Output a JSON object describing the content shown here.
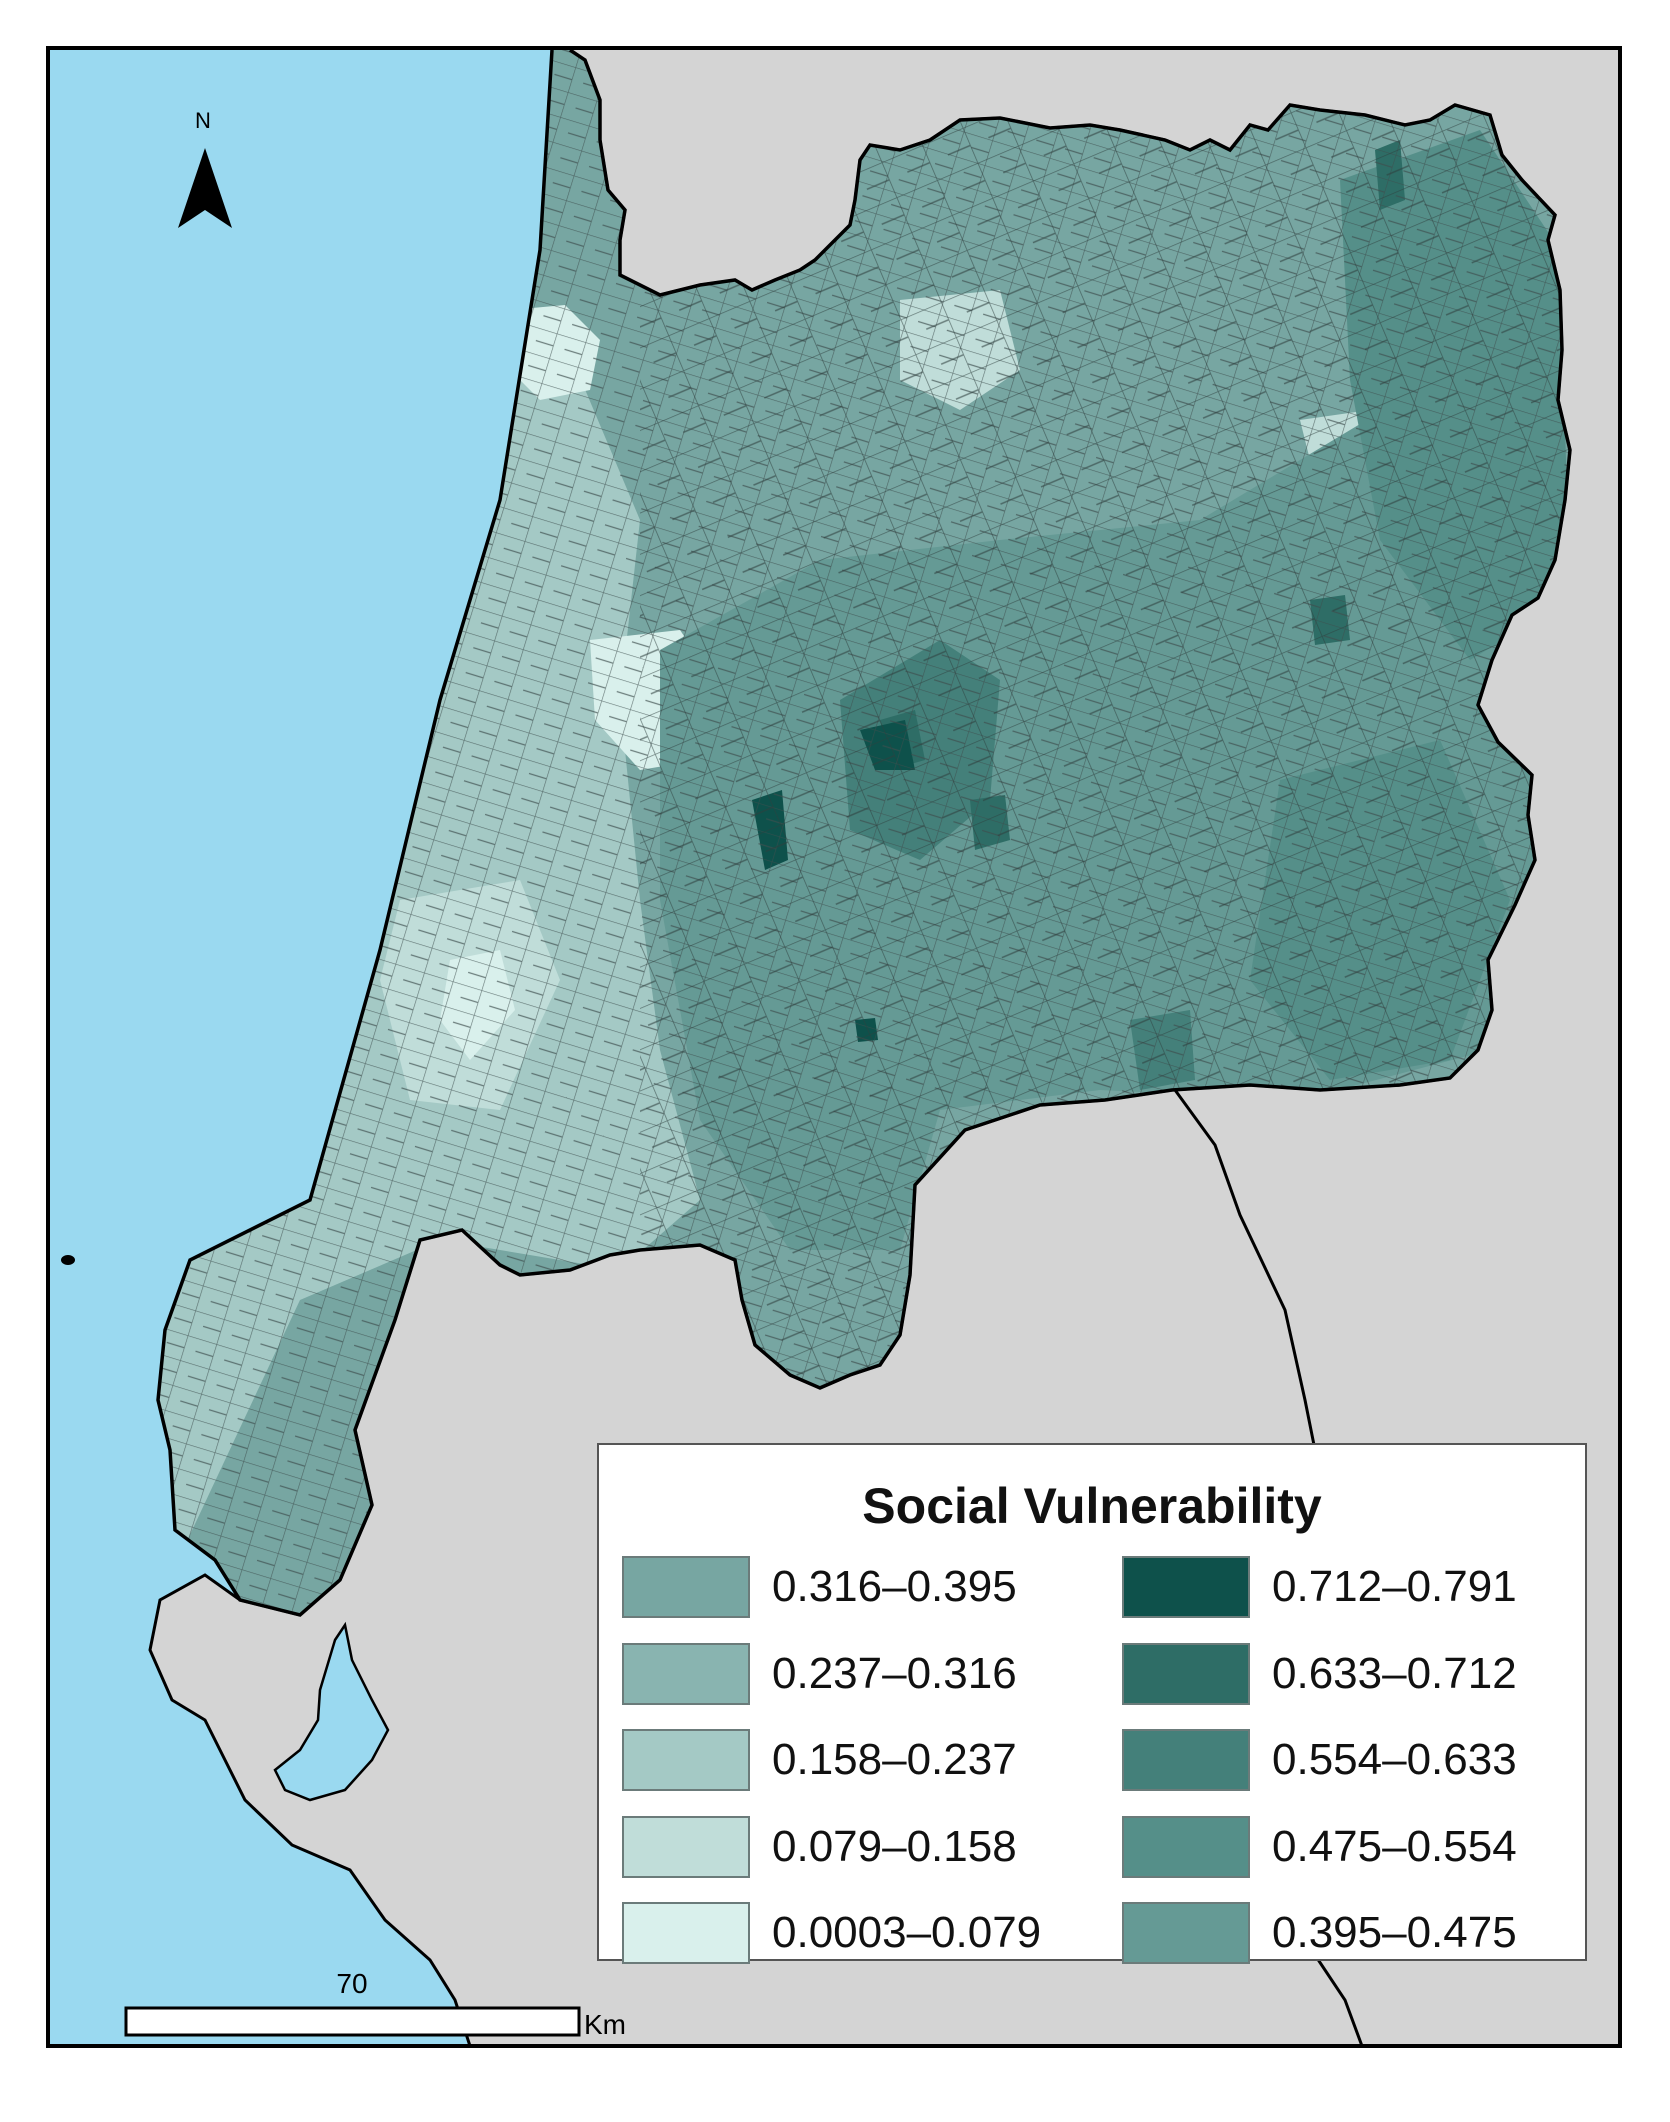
{
  "map": {
    "north_arrow_label": "N",
    "scale_bar": {
      "value_label": "70",
      "unit_label": "Km"
    }
  },
  "legend": {
    "title": "Social Vulnerability",
    "left_column": [
      {
        "label": "0.316–0.395",
        "color": "#77a6a2"
      },
      {
        "label": "0.237–0.316",
        "color": "#89b4b0"
      },
      {
        "label": "0.158–0.237",
        "color": "#a4c9c5"
      },
      {
        "label": "0.079–0.158",
        "color": "#c0ddd9"
      },
      {
        "label": "0.0003–0.079",
        "color": "#d9f0ec"
      }
    ],
    "right_column": [
      {
        "label": "0.712–0.791",
        "color": "#0e514b"
      },
      {
        "label": "0.633–0.712",
        "color": "#2e6d66"
      },
      {
        "label": "0.554–0.633",
        "color": "#44807a"
      },
      {
        "label": "0.475–0.554",
        "color": "#558f89"
      },
      {
        "label": "0.395–0.475",
        "color": "#659a95"
      }
    ]
  },
  "colors": {
    "sea": "#9ad9f0",
    "land_outside": "#d4d4d4",
    "frame": "#000000"
  }
}
